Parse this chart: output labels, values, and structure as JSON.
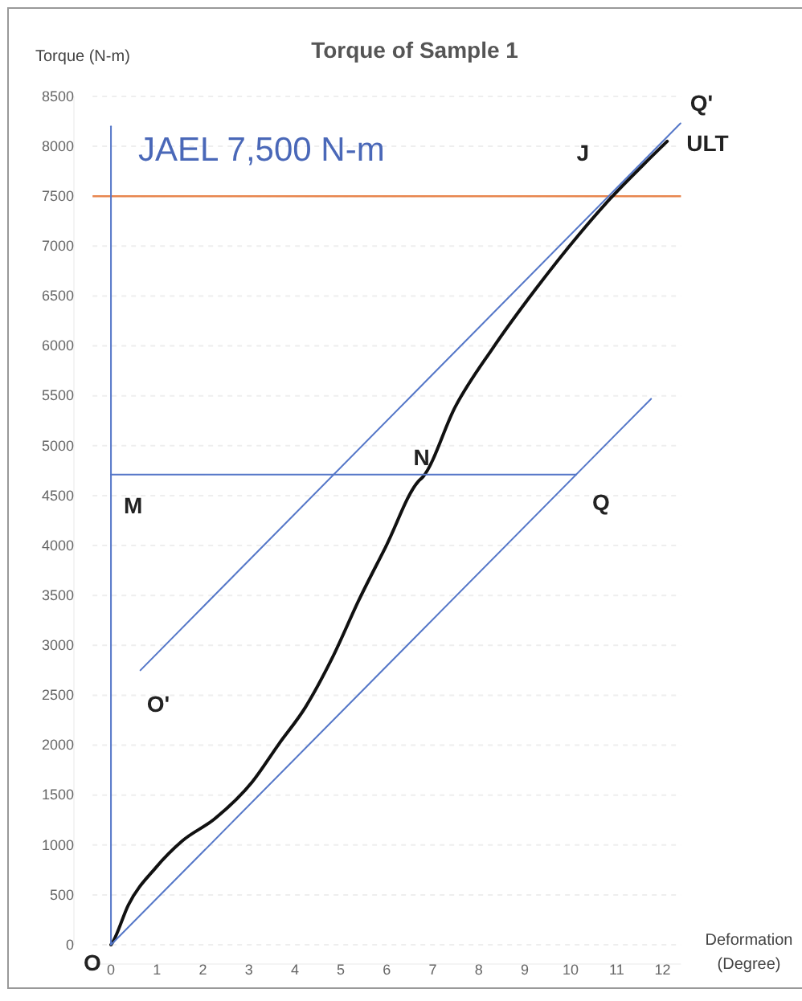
{
  "chart_data": {
    "type": "line",
    "title": "Torque of Sample 1",
    "xlabel": "Deformation (Degree)",
    "ylabel": "Torque (N-m)",
    "xlim": [
      -0.4,
      12.4
    ],
    "xticks": [
      0,
      1,
      2,
      3,
      4,
      5,
      6,
      7,
      8,
      9,
      10,
      11,
      12
    ],
    "ylim": [
      0,
      8500
    ],
    "yticks": [
      0,
      500,
      1000,
      1500,
      2000,
      2500,
      3000,
      3500,
      4000,
      4500,
      5000,
      5500,
      6000,
      6500,
      7000,
      7500,
      8000,
      8500
    ],
    "grid": "y",
    "marker": "none",
    "line_style": "solid",
    "series": [
      {
        "color": "#111111",
        "x": [
          0,
          0.03,
          0.38,
          0.97,
          1.55,
          2.25,
          3.07,
          3.65,
          4.23,
          4.81,
          5.4,
          5.98,
          6.68,
          6.79,
          7.49,
          8.31,
          9.24,
          10.17,
          10.87,
          11.57,
          12.1
        ],
        "values": [
          0,
          20,
          400,
          770,
          1040,
          1260,
          1630,
          2010,
          2380,
          2870,
          3460,
          3990,
          4640,
          4690,
          5390,
          5980,
          6570,
          7110,
          7480,
          7810,
          8050
        ]
      },
      {
        "color": "#5577c8",
        "x": [
          0,
          11.75
        ],
        "values": [
          0,
          5470
        ]
      },
      {
        "color": "#5577c8",
        "x": [
          0.64,
          12.39
        ],
        "values": [
          2750,
          8230
        ]
      },
      {
        "color": "#5577c8",
        "x": [
          0,
          10.12
        ],
        "values": [
          4710,
          4710
        ]
      },
      {
        "color": "#5577c8",
        "x": [
          0,
          0
        ],
        "values": [
          0,
          8200
        ]
      }
    ],
    "ref_lines": [
      {
        "axis": "y",
        "value": 7500,
        "label": "JAEL 7,500 N-m",
        "color": "#e8864f"
      }
    ],
    "annotations": [
      {
        "text": "O",
        "x": 0,
        "y": 0
      },
      {
        "text": "O'",
        "x": 0.64,
        "y": 2750
      },
      {
        "text": "M",
        "x": 0,
        "y": 4710
      },
      {
        "text": "N",
        "x": 6.79,
        "y": 4710
      },
      {
        "text": "Q",
        "x": 10.12,
        "y": 4710
      },
      {
        "text": "J",
        "x": 10.9,
        "y": 7500
      },
      {
        "text": "ULT",
        "x": 12.1,
        "y": 8050
      },
      {
        "text": "Q'",
        "x": 12.39,
        "y": 8230
      }
    ]
  }
}
